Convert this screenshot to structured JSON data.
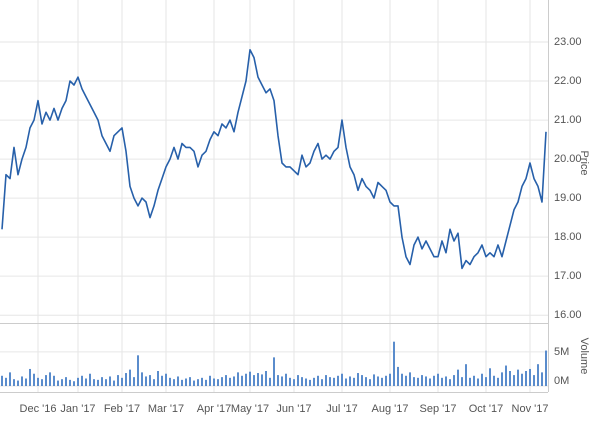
{
  "chart_data": [
    {
      "type": "line",
      "axis_label": "Price",
      "color": "#2760aa",
      "values": [
        18.2,
        19.6,
        19.5,
        20.3,
        19.6,
        20.0,
        20.3,
        20.8,
        21.0,
        21.5,
        20.9,
        21.2,
        21.0,
        21.3,
        21.0,
        21.3,
        21.5,
        22.0,
        21.9,
        22.1,
        21.8,
        21.6,
        21.4,
        21.2,
        21.0,
        20.6,
        20.4,
        20.2,
        20.6,
        20.7,
        20.8,
        20.2,
        19.3,
        19.0,
        18.8,
        19.0,
        18.9,
        18.5,
        18.8,
        19.2,
        19.5,
        19.8,
        20.0,
        20.3,
        20.0,
        20.4,
        20.3,
        20.3,
        20.2,
        19.8,
        20.1,
        20.2,
        20.5,
        20.7,
        20.6,
        20.9,
        20.8,
        21.0,
        20.7,
        21.2,
        21.6,
        22.0,
        22.8,
        22.6,
        22.1,
        21.9,
        21.7,
        21.8,
        21.5,
        20.6,
        19.9,
        19.8,
        19.8,
        19.7,
        19.6,
        20.1,
        19.8,
        19.9,
        20.2,
        20.4,
        20.0,
        20.1,
        20.0,
        20.2,
        20.3,
        21.0,
        20.3,
        19.8,
        19.6,
        19.2,
        19.5,
        19.3,
        19.2,
        19.0,
        19.4,
        19.3,
        19.2,
        18.9,
        18.8,
        18.8,
        18.0,
        17.5,
        17.3,
        17.8,
        18.0,
        17.7,
        17.9,
        17.7,
        17.5,
        17.5,
        17.9,
        17.6,
        18.2,
        17.9,
        18.1,
        17.2,
        17.4,
        17.3,
        17.5,
        17.6,
        17.8,
        17.5,
        17.6,
        17.5,
        17.8,
        17.5,
        17.9,
        18.3,
        18.7,
        18.9,
        19.3,
        19.5,
        19.9,
        19.5,
        19.3,
        18.9,
        20.7
      ],
      "xlim": [
        0,
        136
      ],
      "xticks": [
        {
          "value": 9,
          "label": "Dec '16"
        },
        {
          "value": 19,
          "label": "Jan '17"
        },
        {
          "value": 30,
          "label": "Feb '17"
        },
        {
          "value": 41,
          "label": "Mar '17"
        },
        {
          "value": 53,
          "label": "Apr '17"
        },
        {
          "value": 62,
          "label": "May '17"
        },
        {
          "value": 73,
          "label": "Jun '17"
        },
        {
          "value": 85,
          "label": "Jul '17"
        },
        {
          "value": 97,
          "label": "Aug '17"
        },
        {
          "value": 109,
          "label": "Sep '17"
        },
        {
          "value": 121,
          "label": "Oct '17"
        },
        {
          "value": 132,
          "label": "Nov '17"
        }
      ],
      "ylim": [
        15.8,
        24
      ],
      "yticks": [
        {
          "value": 16,
          "label": "16.00"
        },
        {
          "value": 17,
          "label": "17.00"
        },
        {
          "value": 18,
          "label": "18.00"
        },
        {
          "value": 19,
          "label": "19.00"
        },
        {
          "value": 20,
          "label": "20.00"
        },
        {
          "value": 21,
          "label": "21.00"
        },
        {
          "value": 22,
          "label": "22.00"
        },
        {
          "value": 23,
          "label": "23.00"
        }
      ],
      "grid": true
    },
    {
      "type": "bar",
      "axis_label": "Volume",
      "color": "#5a8ccc",
      "values": [
        1500000,
        1200000,
        2000000,
        1000000,
        800000,
        1400000,
        1100000,
        2500000,
        1800000,
        1200000,
        1000000,
        1600000,
        2000000,
        1500000,
        800000,
        1000000,
        1300000,
        900000,
        700000,
        1200000,
        1500000,
        1100000,
        1800000,
        1000000,
        900000,
        1300000,
        1000000,
        1400000,
        800000,
        1600000,
        1200000,
        1900000,
        2400000,
        1300000,
        4500000,
        2000000,
        1400000,
        1600000,
        1000000,
        2200000,
        1500000,
        1800000,
        1200000,
        1000000,
        1400000,
        900000,
        1100000,
        1300000,
        800000,
        1000000,
        1200000,
        900000,
        1500000,
        1100000,
        1000000,
        1300000,
        1600000,
        1200000,
        1400000,
        2000000,
        1500000,
        1800000,
        2100000,
        1600000,
        1900000,
        1700000,
        2200000,
        1200000,
        4200000,
        1600000,
        1400000,
        1800000,
        1200000,
        1000000,
        1600000,
        1300000,
        1100000,
        900000,
        1200000,
        1500000,
        1000000,
        1600000,
        1300000,
        1200000,
        1500000,
        1800000,
        1100000,
        1400000,
        1200000,
        1900000,
        1600000,
        1300000,
        1000000,
        1700000,
        1400000,
        1200000,
        1500000,
        1800000,
        6500000,
        2800000,
        1800000,
        1500000,
        2000000,
        1300000,
        1200000,
        1600000,
        1400000,
        1100000,
        1500000,
        1800000,
        1200000,
        1400000,
        1000000,
        1600000,
        2400000,
        1300000,
        3200000,
        1200000,
        1500000,
        1100000,
        1800000,
        1300000,
        2600000,
        1500000,
        1200000,
        2000000,
        3000000,
        2200000,
        1600000,
        2400000,
        1800000,
        2200000,
        2500000,
        1600000,
        3200000,
        2000000,
        5200000
      ],
      "ylim": [
        0,
        8800000
      ],
      "yticks": [
        {
          "value": 0,
          "label": "0M"
        },
        {
          "value": 5000000,
          "label": "5M"
        }
      ],
      "grid": true
    }
  ]
}
